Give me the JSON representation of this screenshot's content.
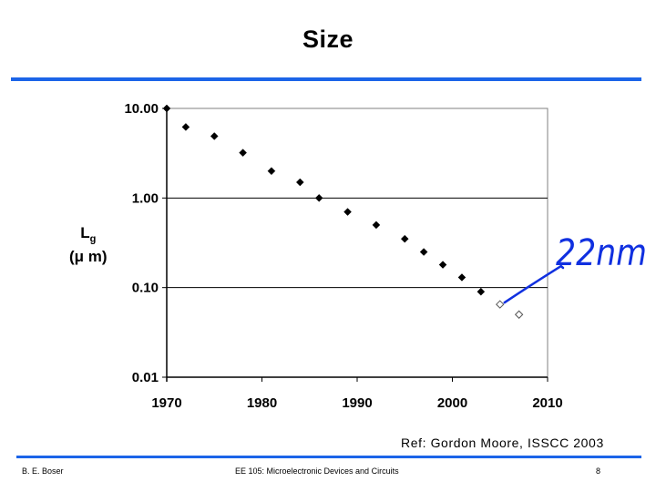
{
  "slide": {
    "title": "Size",
    "reference": "Ref: Gordon Moore, ISSCC 2003",
    "footer_left": "B. E. Boser",
    "footer_center": "EE 105: Microelectronic Devices and Circuits",
    "footer_right": "8",
    "annotation": "22nm",
    "rule_color": "#1b64e8",
    "annotation_color": "#1030e0"
  },
  "chart_data": {
    "type": "scatter",
    "title": "",
    "xlabel": "",
    "ylabel": {
      "symbol": "L",
      "sub": "g",
      "unit": "(μ m)"
    },
    "xlim": [
      1970,
      2010
    ],
    "ylim": [
      0.01,
      10
    ],
    "yscale": "log",
    "grid": "horizontal",
    "legend": "none",
    "x_ticks": [
      "1970",
      "1980",
      "1990",
      "2000",
      "2010"
    ],
    "y_ticks": [
      {
        "value": 10,
        "label": "10.00"
      },
      {
        "value": 1,
        "label": "1.00"
      },
      {
        "value": 0.1,
        "label": "0.10"
      },
      {
        "value": 0.01,
        "label": "0.01"
      }
    ],
    "series": [
      {
        "marker": "filled-diamond",
        "points": [
          [
            1970,
            10
          ],
          [
            1972,
            6.2
          ],
          [
            1975,
            4.9
          ],
          [
            1978,
            3.2
          ],
          [
            1981,
            2.0
          ],
          [
            1984,
            1.5
          ],
          [
            1986,
            1.0
          ],
          [
            1989,
            0.7
          ],
          [
            1992,
            0.5
          ],
          [
            1995,
            0.35
          ],
          [
            1997,
            0.25
          ],
          [
            1999,
            0.18
          ],
          [
            2001,
            0.13
          ],
          [
            2003,
            0.09
          ]
        ]
      },
      {
        "marker": "open-diamond",
        "points": [
          [
            2005,
            0.065
          ],
          [
            2007,
            0.05
          ]
        ]
      }
    ]
  }
}
